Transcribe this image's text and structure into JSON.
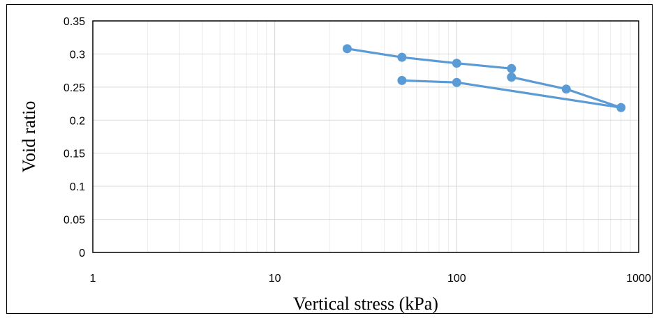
{
  "chart_data": {
    "type": "line",
    "xscale": "log",
    "xlim": [
      1,
      1000
    ],
    "ylim": [
      0,
      0.35
    ],
    "grid": true,
    "legend": "none",
    "xlabel": "Vertical stress (kPa)",
    "ylabel": "Void ratio",
    "x_tick_labels": [
      "1",
      "10",
      "100",
      "1000"
    ],
    "x_ticks": [
      1,
      10,
      100,
      1000
    ],
    "y_tick_labels": [
      "0",
      "0.05",
      "0.1",
      "0.15",
      "0.2",
      "0.25",
      "0.3",
      "0.35"
    ],
    "y_ticks": [
      0,
      0.05,
      0.1,
      0.15,
      0.2,
      0.25,
      0.3,
      0.35
    ],
    "series": [
      {
        "color": "#5b9bd5",
        "x": [
          25,
          50,
          100,
          200,
          200,
          400,
          800,
          100,
          50
        ],
        "y": [
          0.308,
          0.295,
          0.286,
          0.278,
          0.265,
          0.247,
          0.219,
          0.257,
          0.26
        ]
      }
    ]
  }
}
